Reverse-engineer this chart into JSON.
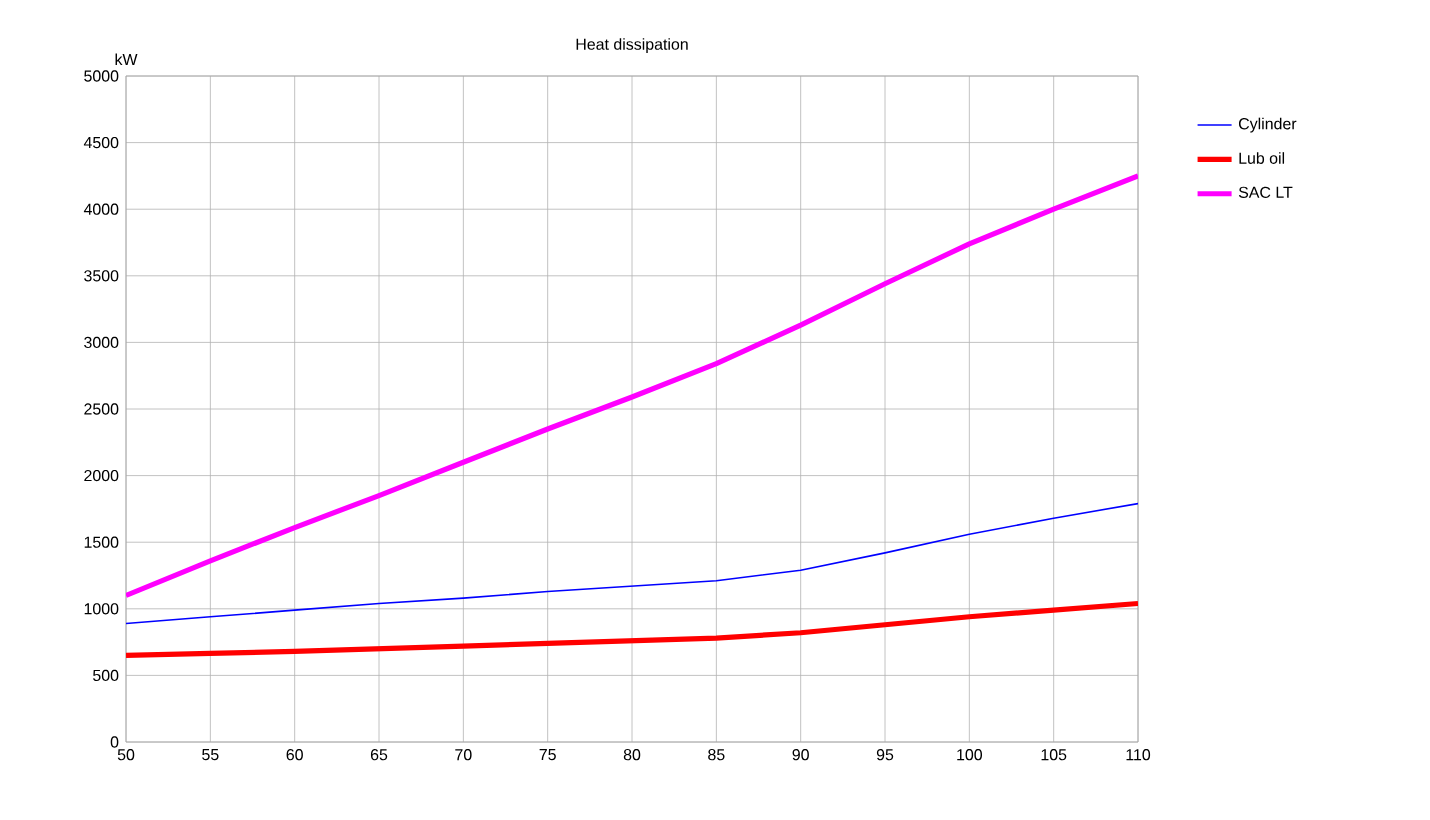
{
  "chart_data": {
    "type": "line",
    "title": "Heat dissipation",
    "ylabel": "kW",
    "x": [
      50,
      55,
      60,
      65,
      70,
      75,
      80,
      85,
      90,
      95,
      100,
      105,
      110
    ],
    "series": [
      {
        "name": "Cylinder",
        "color": "#0000ff",
        "values": [
          890,
          940,
          990,
          1040,
          1080,
          1130,
          1170,
          1210,
          1290,
          1420,
          1560,
          1680,
          1790
        ]
      },
      {
        "name": "Lub oil",
        "color": "#ff0000",
        "values": [
          650,
          665,
          680,
          700,
          720,
          740,
          760,
          780,
          820,
          880,
          940,
          990,
          1040
        ]
      },
      {
        "name": "SAC LT",
        "color": "#ff00ff",
        "values": [
          1100,
          1360,
          1610,
          1850,
          2100,
          2350,
          2590,
          2840,
          3130,
          3440,
          3740,
          4000,
          4250
        ]
      }
    ],
    "xlim": [
      50,
      110
    ],
    "ylim": [
      0,
      5000
    ],
    "xticks": [
      50,
      55,
      60,
      65,
      70,
      75,
      80,
      85,
      90,
      95,
      100,
      105,
      110
    ],
    "yticks": [
      0,
      500,
      1000,
      1500,
      2000,
      2500,
      3000,
      3500,
      4000,
      4500,
      5000
    ],
    "grid": true,
    "legend": "right",
    "marker": "none",
    "line_style": "solid"
  }
}
